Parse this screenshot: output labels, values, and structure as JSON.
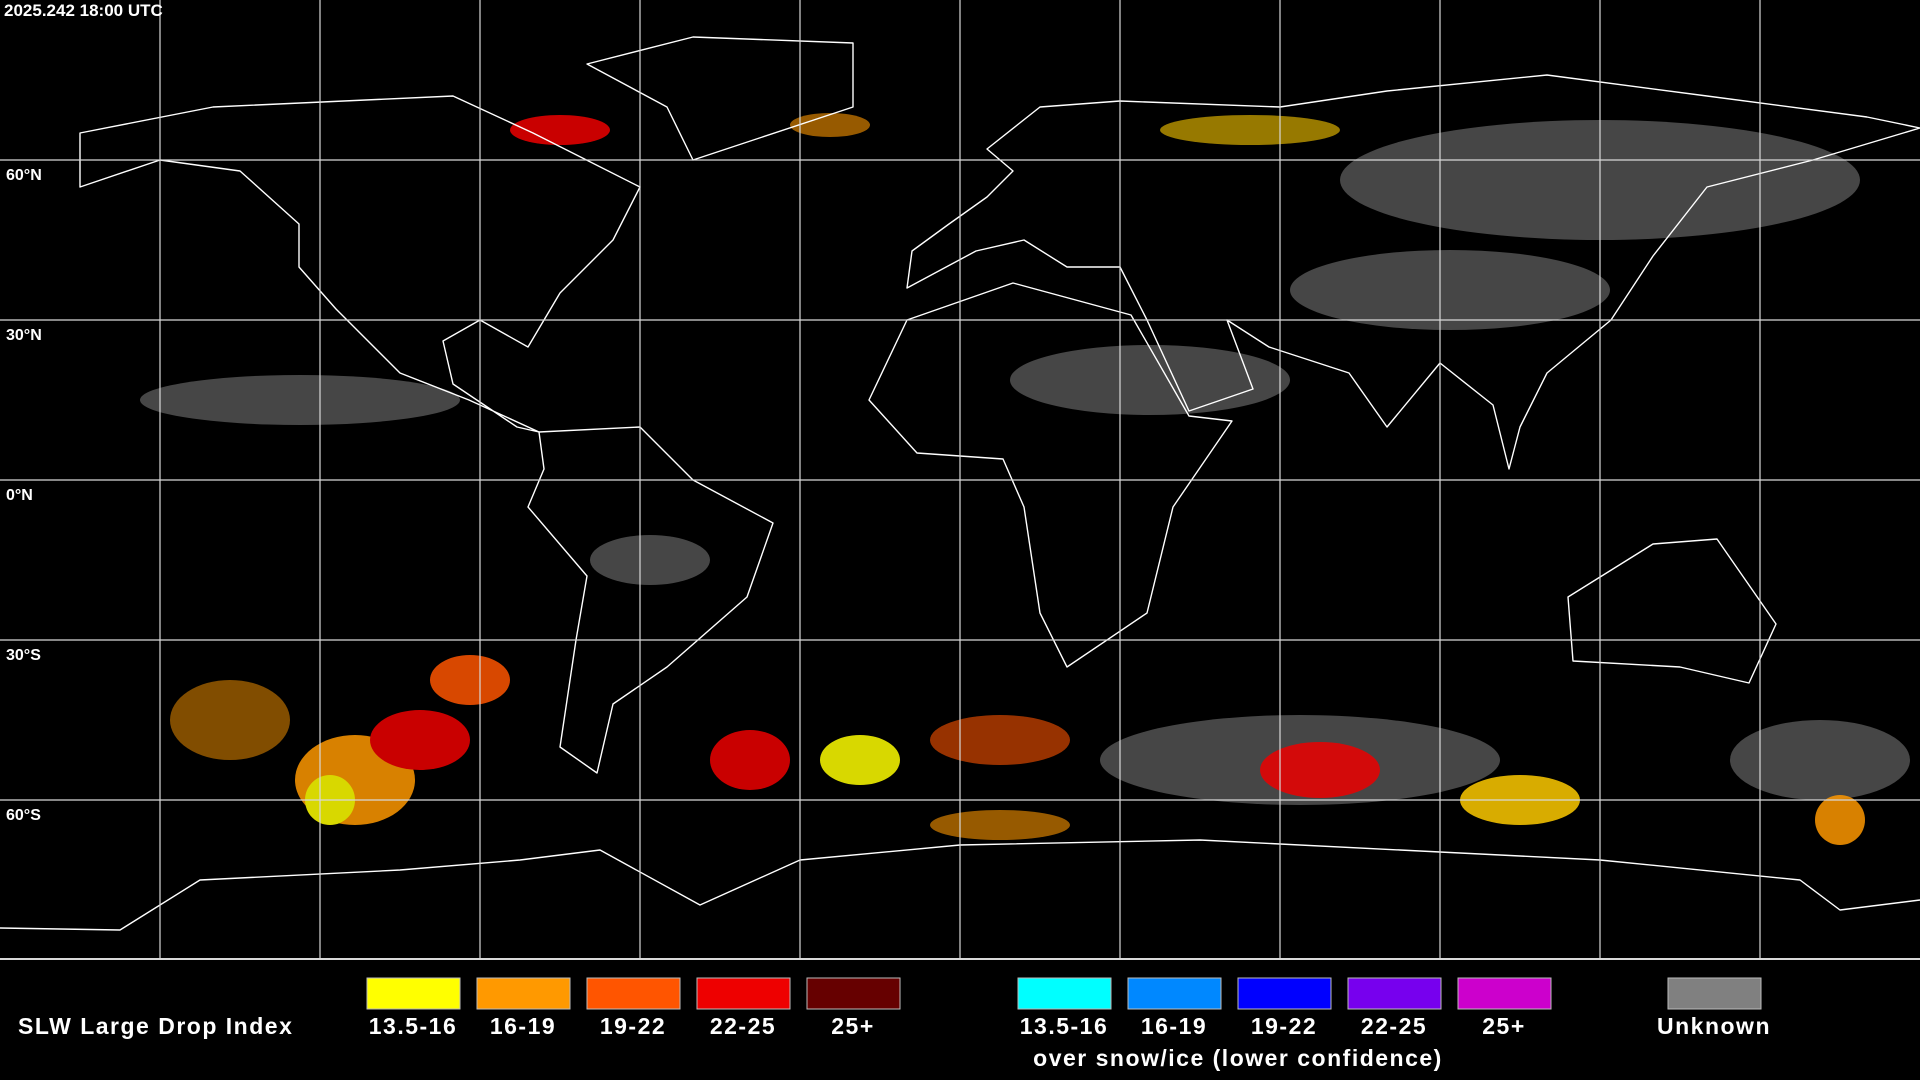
{
  "header": {
    "timestamp": "2025.242 18:00 UTC"
  },
  "map": {
    "latitude_labels": [
      "60°N",
      "30°N",
      "0°N",
      "30°S",
      "60°S"
    ]
  },
  "legend": {
    "title": "SLW Large Drop Index",
    "categories": [
      {
        "label": "13.5-16",
        "color": "#ffff00"
      },
      {
        "label": "16-19",
        "color": "#ff9900"
      },
      {
        "label": "19-22",
        "color": "#ff5500"
      },
      {
        "label": "22-25",
        "color": "#ee0000"
      },
      {
        "label": "25+",
        "color": "#660000"
      }
    ],
    "snow_ice_categories": [
      {
        "label": "13.5-16",
        "color": "#00ffff"
      },
      {
        "label": "16-19",
        "color": "#0088ff"
      },
      {
        "label": "19-22",
        "color": "#0000ff"
      },
      {
        "label": "22-25",
        "color": "#7700ee"
      },
      {
        "label": "25+",
        "color": "#cc00cc"
      }
    ],
    "snow_ice_caption": "over snow/ice (lower confidence)",
    "unknown": {
      "label": "Unknown",
      "color": "#808080"
    }
  }
}
